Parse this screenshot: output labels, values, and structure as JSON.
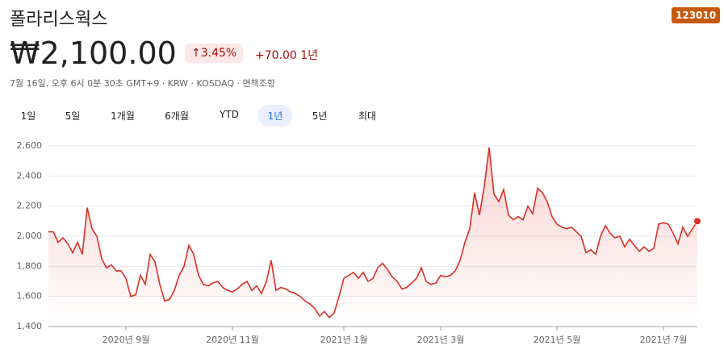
{
  "header": {
    "title": "폴라리스웍스",
    "ticker": "123010",
    "price": "₩2,100.00",
    "change_percent": "3.45%",
    "change_amount": "+70.00",
    "change_period": "1년",
    "info": "7월 16일, 오후 6시 0분 30초 GMT+9 · KRW · KOSDAQ · 면책조항"
  },
  "tabs": [
    "1일",
    "5일",
    "1개월",
    "6개월",
    "YTD",
    "1년",
    "5년",
    "최대"
  ],
  "selected_tab": 5,
  "chart_data": {
    "type": "line",
    "color": "#d93025",
    "grid": true,
    "xlim": [
      0,
      134
    ],
    "xticks": [
      {
        "value": 16,
        "label": "2020년 9월"
      },
      {
        "value": 38,
        "label": "2020년 11월"
      },
      {
        "value": 61,
        "label": "2021년 1월"
      },
      {
        "value": 81,
        "label": "2021년 3월"
      },
      {
        "value": 105,
        "label": "2021년 5월"
      },
      {
        "value": 127,
        "label": "2021년 7월"
      }
    ],
    "ylim": [
      1400,
      2600
    ],
    "yticks": [
      {
        "value": 1400,
        "label": "1,400"
      },
      {
        "value": 1600,
        "label": "1,600"
      },
      {
        "value": 1800,
        "label": "1,800"
      },
      {
        "value": 2000,
        "label": "2,000"
      },
      {
        "value": 2200,
        "label": "2,200"
      },
      {
        "value": 2400,
        "label": "2,400"
      },
      {
        "value": 2600,
        "label": "2,600"
      }
    ],
    "values": [
      2030,
      2030,
      1960,
      1990,
      1950,
      1890,
      1960,
      1880,
      2190,
      2050,
      2000,
      1850,
      1790,
      1810,
      1770,
      1770,
      1720,
      1600,
      1610,
      1740,
      1680,
      1880,
      1830,
      1680,
      1570,
      1580,
      1640,
      1740,
      1800,
      1940,
      1880,
      1740,
      1680,
      1670,
      1690,
      1700,
      1660,
      1640,
      1630,
      1650,
      1680,
      1700,
      1640,
      1670,
      1620,
      1700,
      1840,
      1640,
      1660,
      1650,
      1630,
      1620,
      1600,
      1570,
      1550,
      1520,
      1470,
      1500,
      1460,
      1490,
      1600,
      1720,
      1740,
      1760,
      1720,
      1760,
      1700,
      1720,
      1790,
      1820,
      1780,
      1730,
      1700,
      1650,
      1660,
      1690,
      1720,
      1790,
      1700,
      1680,
      1690,
      1740,
      1730,
      1740,
      1770,
      1840,
      1960,
      2050,
      2290,
      2140,
      2330,
      2590,
      2280,
      2230,
      2310,
      2140,
      2110,
      2130,
      2110,
      2200,
      2150,
      2320,
      2290,
      2230,
      2130,
      2080,
      2060,
      2050,
      2060,
      2030,
      2000,
      1890,
      1910,
      1880,
      2000,
      2070,
      2020,
      1990,
      2000,
      1930,
      1980,
      1940,
      1900,
      1930,
      1900,
      1920,
      2080,
      2090,
      2080,
      2020,
      1950,
      2060,
      2000,
      2050,
      2100
    ]
  }
}
